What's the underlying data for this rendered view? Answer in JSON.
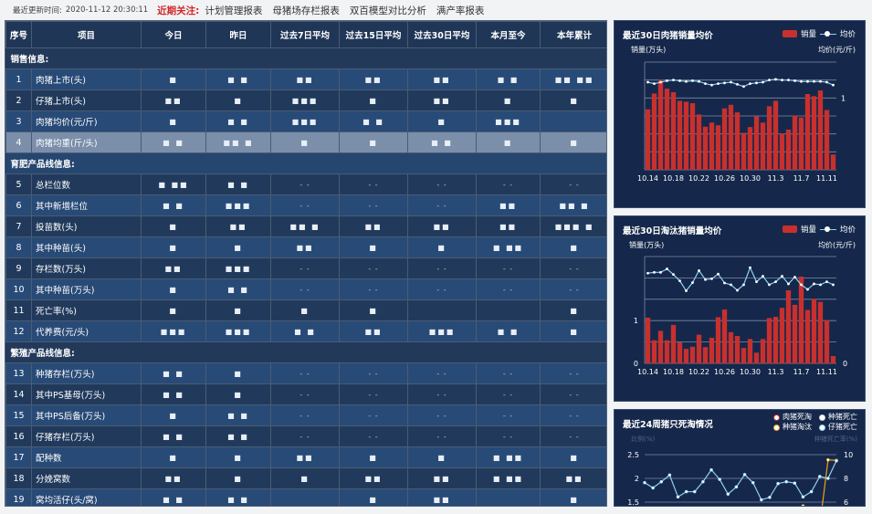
{
  "topbar": {
    "update_label": "最近更新时间:",
    "update_time": "2020-11-12 20:30:11",
    "focus_label": "近期关注:",
    "links": [
      "计划管理报表",
      "母猪场存栏报表",
      "双百模型对比分析",
      "满产率报表"
    ]
  },
  "table": {
    "headers": [
      "序号",
      "项目",
      "今日",
      "昨日",
      "过去7日平均",
      "过去15日平均",
      "过去30日平均",
      "本月至今",
      "本年累计"
    ],
    "rows": [
      {
        "type": "section",
        "label": "销售信息:",
        "tone": "dk"
      },
      {
        "type": "row",
        "tone": "lt",
        "no": "1",
        "item": "肉猪上市(头)",
        "cells": [
          "■",
          "■ ■",
          "■■",
          "■■",
          "■■",
          "■ ■",
          "■■ ■■"
        ]
      },
      {
        "type": "row",
        "tone": "dk",
        "no": "2",
        "item": "仔猪上市(头)",
        "cells": [
          "■■",
          "■",
          "■■■",
          "■",
          "■■",
          "■",
          "■"
        ]
      },
      {
        "type": "row",
        "tone": "lt",
        "no": "3",
        "item": "肉猪均价(元/斤)",
        "cells": [
          "■",
          "■ ■",
          "■■■",
          "■ ■",
          "■",
          "■■■",
          ""
        ]
      },
      {
        "type": "row",
        "tone": "hl",
        "no": "4",
        "item": "肉猪均重(斤/头)",
        "cells": [
          "■ ■",
          "■■ ■",
          "■",
          "■",
          "■ ■",
          "■",
          "■"
        ]
      },
      {
        "type": "section",
        "label": "育肥产品线信息:",
        "tone": "lt"
      },
      {
        "type": "row",
        "tone": "dk",
        "no": "5",
        "item": "总栏位数",
        "cells": [
          "■ ■■",
          "■ ■",
          "- -",
          "- -",
          "- -",
          "- -",
          "- -"
        ]
      },
      {
        "type": "row",
        "tone": "lt",
        "no": "6",
        "item": "其中新增栏位",
        "cells": [
          "■ ■",
          "■■■",
          "- -",
          "- -",
          "- -",
          "■■",
          "■■ ■"
        ]
      },
      {
        "type": "row",
        "tone": "dk",
        "no": "7",
        "item": "投苗数(头)",
        "cells": [
          "■",
          "■■",
          "■■ ■",
          "■■",
          "■■",
          "■■",
          "■■■ ■"
        ]
      },
      {
        "type": "row",
        "tone": "lt",
        "no": "8",
        "item": "其中种苗(头)",
        "cells": [
          "■",
          "■",
          "■■",
          "■",
          "■",
          "■ ■■",
          "■"
        ]
      },
      {
        "type": "row",
        "tone": "dk",
        "no": "9",
        "item": "存栏数(万头)",
        "cells": [
          "■■",
          "■■■",
          "- -",
          "- -",
          "- -",
          "- -",
          "- -"
        ]
      },
      {
        "type": "row",
        "tone": "lt",
        "no": "10",
        "item": "其中种苗(万头)",
        "cells": [
          "■",
          "■ ■",
          "- -",
          "- -",
          "- -",
          "- -",
          "- -"
        ]
      },
      {
        "type": "row",
        "tone": "dk",
        "no": "11",
        "item": "死亡率(%)",
        "cells": [
          "■",
          "■",
          "■",
          "■",
          "",
          "",
          "■"
        ]
      },
      {
        "type": "row",
        "tone": "lt",
        "no": "12",
        "item": "代养费(元/头)",
        "cells": [
          "■■■",
          "■■■",
          "■ ■",
          "■■",
          "■■■",
          "■ ■",
          "■"
        ]
      },
      {
        "type": "section",
        "label": "繁殖产品线信息:",
        "tone": "dk"
      },
      {
        "type": "row",
        "tone": "lt",
        "no": "13",
        "item": "种猪存栏(万头)",
        "cells": [
          "■ ■",
          "■",
          "- -",
          "- -",
          "- -",
          "- -",
          "- -"
        ]
      },
      {
        "type": "row",
        "tone": "dk",
        "no": "14",
        "item": "其中PS基母(万头)",
        "cells": [
          "■ ■",
          "■",
          "- -",
          "- -",
          "- -",
          "- -",
          "- -"
        ]
      },
      {
        "type": "row",
        "tone": "lt",
        "no": "15",
        "item": "其中PS后备(万头)",
        "cells": [
          "■",
          "■ ■",
          "- -",
          "- -",
          "- -",
          "- -",
          "- -"
        ]
      },
      {
        "type": "row",
        "tone": "dk",
        "no": "16",
        "item": "仔猪存栏(万头)",
        "cells": [
          "■ ■",
          "■ ■",
          "- -",
          "- -",
          "- -",
          "- -",
          "- -"
        ]
      },
      {
        "type": "row",
        "tone": "lt",
        "no": "17",
        "item": "配种数",
        "cells": [
          "■",
          "■",
          "■■",
          "■",
          "■",
          "■ ■■",
          "■"
        ]
      },
      {
        "type": "row",
        "tone": "dk",
        "no": "18",
        "item": "分娩窝数",
        "cells": [
          "■■",
          "■",
          "■",
          "■■",
          "■■",
          "■ ■■",
          "■■"
        ]
      },
      {
        "type": "row",
        "tone": "lt",
        "no": "19",
        "item": "窝均活仔(头/窝)",
        "cells": [
          "■ ■",
          "■ ■",
          "",
          "■",
          "■■",
          "",
          "■"
        ]
      }
    ]
  },
  "chart_data": [
    {
      "type": "bar+line",
      "title": "最近30日肉猪销量均价",
      "ylabel": "销量(万头)",
      "y2label": "均价(元/斤)",
      "legend": [
        "销量",
        "均价"
      ],
      "legend_position": "top-right",
      "grid": true,
      "ylim": [
        0,
        6
      ],
      "y2lim": [
        0,
        1.5
      ],
      "y_ticks_visible": [],
      "y2_ticks_visible": [
        "1"
      ],
      "x_tick_labels": [
        "10.14",
        "10.18",
        "10.22",
        "10.26",
        "10.30",
        "11.3",
        "11.7",
        "11.11"
      ],
      "x": [
        "10.14",
        "10.15",
        "10.16",
        "10.17",
        "10.18",
        "10.19",
        "10.20",
        "10.21",
        "10.22",
        "10.23",
        "10.24",
        "10.25",
        "10.26",
        "10.27",
        "10.28",
        "10.29",
        "10.30",
        "10.31",
        "11.1",
        "11.2",
        "11.3",
        "11.4",
        "11.5",
        "11.6",
        "11.7",
        "11.8",
        "11.9",
        "11.10",
        "11.11",
        "11.12"
      ],
      "series": [
        {
          "name": "销量",
          "kind": "bar",
          "color": "#c8302e",
          "values": [
            3.37,
            4.25,
            5.01,
            4.52,
            4.32,
            3.84,
            3.79,
            3.71,
            3.08,
            2.4,
            2.63,
            2.48,
            3.42,
            3.62,
            3.2,
            2.06,
            2.38,
            2.97,
            2.63,
            3.54,
            3.84,
            2.01,
            2.24,
            3.03,
            2.91,
            4.22,
            4.1,
            4.42,
            3.33,
            0.85
          ]
        },
        {
          "name": "均价",
          "kind": "line",
          "axis": "right",
          "color": "#8fd0f0",
          "values": [
            1.22,
            1.2,
            1.22,
            1.24,
            1.25,
            1.24,
            1.23,
            1.24,
            1.23,
            1.2,
            1.18,
            1.2,
            1.21,
            1.22,
            1.19,
            1.16,
            1.2,
            1.21,
            1.22,
            1.25,
            1.26,
            1.25,
            1.25,
            1.24,
            1.23,
            1.23,
            1.23,
            1.23,
            1.22,
            1.18
          ]
        }
      ]
    },
    {
      "type": "bar+line",
      "title": "最近30日淘汰猪销量均价",
      "ylabel": "销量(万头)",
      "y2label": "均价(元/斤)",
      "legend": [
        "销量",
        "均价"
      ],
      "legend_position": "top-right",
      "grid": true,
      "ylim": [
        0,
        2.5
      ],
      "y2lim": [
        0,
        2.5
      ],
      "y_ticks_visible": [
        "0",
        "1"
      ],
      "y2_ticks_visible": [
        "0"
      ],
      "x_tick_labels": [
        "10.14",
        "10.18",
        "10.22",
        "10.26",
        "10.30",
        "11.3",
        "11.7",
        "11.11"
      ],
      "x": [
        "10.14",
        "10.15",
        "10.16",
        "10.17",
        "10.18",
        "10.19",
        "10.20",
        "10.21",
        "10.22",
        "10.23",
        "10.24",
        "10.25",
        "10.26",
        "10.27",
        "10.28",
        "10.29",
        "10.30",
        "10.31",
        "11.1",
        "11.2",
        "11.3",
        "11.4",
        "11.5",
        "11.6",
        "11.7",
        "11.8",
        "11.9",
        "11.10",
        "11.11",
        "11.12"
      ],
      "series": [
        {
          "name": "销量",
          "kind": "bar",
          "color": "#c8302e",
          "values": [
            1.07,
            0.54,
            0.76,
            0.54,
            0.9,
            0.49,
            0.34,
            0.39,
            0.67,
            0.38,
            0.6,
            1.08,
            1.26,
            0.73,
            0.64,
            0.36,
            0.57,
            0.25,
            0.57,
            1.06,
            1.09,
            1.3,
            1.71,
            1.37,
            2.03,
            1.25,
            1.51,
            1.44,
            1.01,
            0.17
          ]
        },
        {
          "name": "均价",
          "kind": "line",
          "axis": "right",
          "color": "#8fd0f0",
          "values": [
            2.11,
            2.13,
            2.13,
            2.21,
            2.08,
            1.93,
            1.7,
            1.89,
            2.17,
            1.96,
            1.98,
            2.09,
            1.88,
            1.84,
            1.71,
            1.84,
            2.24,
            1.91,
            2.04,
            1.84,
            1.91,
            2.04,
            1.86,
            2.02,
            1.84,
            1.73,
            1.86,
            1.84,
            1.91,
            1.84
          ]
        }
      ]
    },
    {
      "type": "line",
      "title": "最近24周猪只死淘情况",
      "ylabel": "比例(%)",
      "y2label": "种猪死亡率(%)",
      "legend": [
        "肉猪死淘",
        "种猪死亡",
        "种猪淘汰",
        "仔猪死亡"
      ],
      "legend_position": "top-right",
      "grid": true,
      "ylim": [
        1.5,
        2.5
      ],
      "y2lim": [
        6,
        10
      ],
      "y_ticks": [
        "2.5",
        "2",
        "1.5"
      ],
      "y2_ticks": [
        "10",
        "8",
        "6"
      ],
      "series": [
        {
          "name": "肉猪死淘",
          "color": "#c8302e",
          "values": []
        },
        {
          "name": "种猪死亡",
          "color": "#cfd6e0",
          "values": []
        },
        {
          "name": "种猪淘汰",
          "color": "#f0a020",
          "values": [
            null,
            null,
            null,
            null,
            null,
            null,
            null,
            null,
            null,
            null,
            null,
            null,
            null,
            null,
            null,
            null,
            null,
            null,
            null,
            1.42,
            1.2,
            1.0,
            2.39,
            2.38
          ]
        },
        {
          "name": "仔猪死亡",
          "color": "#8fd0f0",
          "values": [
            1.91,
            1.8,
            1.93,
            2.07,
            1.61,
            1.72,
            1.72,
            1.93,
            2.18,
            1.98,
            1.67,
            1.82,
            2.08,
            1.91,
            1.55,
            1.6,
            1.89,
            1.93,
            1.9,
            1.61,
            1.72,
            2.04,
            2.0,
            2.37
          ]
        }
      ]
    }
  ]
}
